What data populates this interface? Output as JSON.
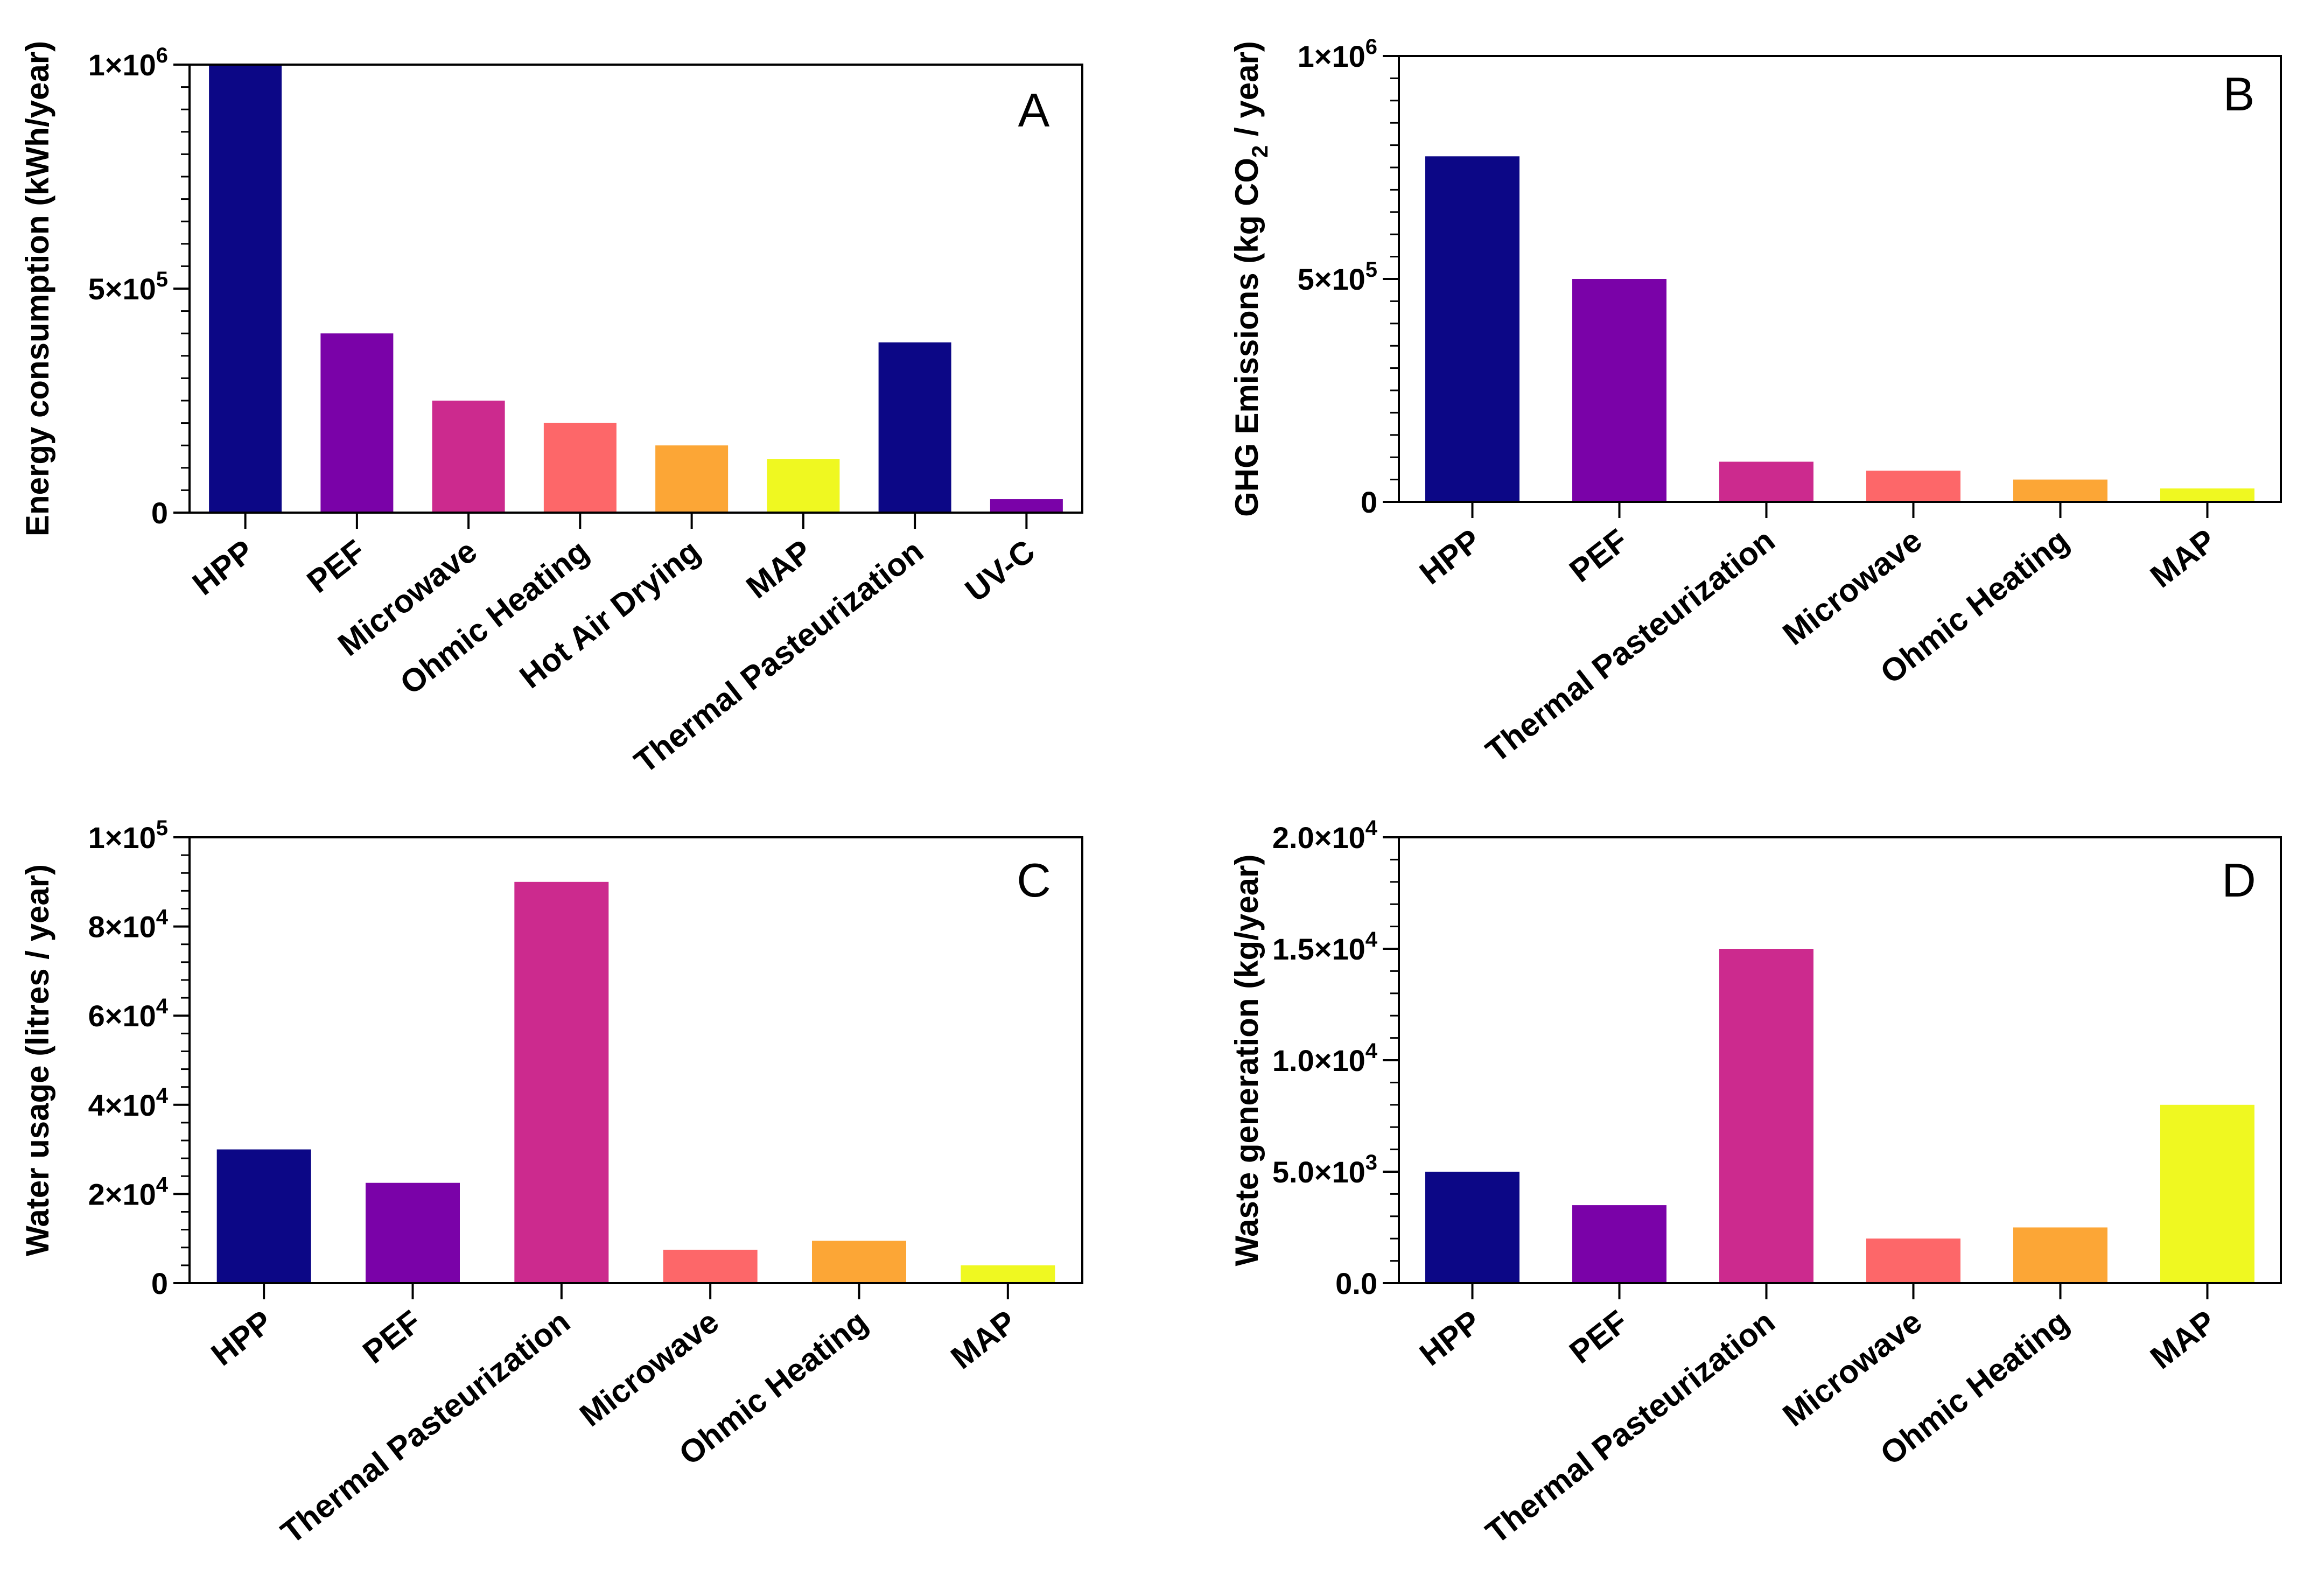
{
  "colors": {
    "palette": [
      "#0c0786",
      "#7a02a8",
      "#cc2a8e",
      "#fd6769",
      "#fca636",
      "#eff821"
    ],
    "axis": "#000000",
    "background": "#ffffff"
  },
  "chart_data": [
    {
      "panel": "A",
      "type": "bar",
      "ylabel": "Energy consumption (kWh/year)",
      "ylim": [
        0,
        1000000
      ],
      "y_ticks": [
        {
          "value": 0,
          "mantissa": "0",
          "exponent": ""
        },
        {
          "value": 500000,
          "mantissa": "5×10",
          "exponent": "5"
        },
        {
          "value": 1000000,
          "mantissa": "1×10",
          "exponent": "6"
        }
      ],
      "minor_ticks_per_major": 10,
      "categories": [
        "HPP",
        "PEF",
        "Microwave",
        "Ohmic Heating",
        "Hot Air Drying",
        "MAP",
        "Thermal Pasteurization",
        "UV-C"
      ],
      "values": [
        1000000,
        400000,
        250000,
        200000,
        150000,
        120000,
        380000,
        30000
      ],
      "bar_colors": [
        "#0c0786",
        "#7a02a8",
        "#cc2a8e",
        "#fd6769",
        "#fca636",
        "#eff821",
        "#0c0786",
        "#7a02a8"
      ],
      "legend": "none"
    },
    {
      "panel": "B",
      "type": "bar",
      "ylabel_parts": [
        "GHG Emissions (kg CO",
        "2",
        " / year)"
      ],
      "ylim": [
        0,
        1000000
      ],
      "y_ticks": [
        {
          "value": 0,
          "mantissa": "0",
          "exponent": ""
        },
        {
          "value": 500000,
          "mantissa": "5×10",
          "exponent": "5"
        },
        {
          "value": 1000000,
          "mantissa": "1×10",
          "exponent": "6"
        }
      ],
      "minor_ticks_per_major": 10,
      "categories": [
        "HPP",
        "PEF",
        "Thermal Pasteurization",
        "Microwave",
        "Ohmic Heating",
        "MAP"
      ],
      "values": [
        775000,
        500000,
        90000,
        70000,
        50000,
        30000
      ],
      "bar_colors": [
        "#0c0786",
        "#7a02a8",
        "#cc2a8e",
        "#fd6769",
        "#fca636",
        "#eff821"
      ],
      "legend": "none"
    },
    {
      "panel": "C",
      "type": "bar",
      "ylabel": "Water usage (litres / year)",
      "ylim": [
        0,
        100000
      ],
      "y_ticks": [
        {
          "value": 0,
          "mantissa": "0",
          "exponent": ""
        },
        {
          "value": 20000,
          "mantissa": "2×10",
          "exponent": "4"
        },
        {
          "value": 40000,
          "mantissa": "4×10",
          "exponent": "4"
        },
        {
          "value": 60000,
          "mantissa": "6×10",
          "exponent": "4"
        },
        {
          "value": 80000,
          "mantissa": "8×10",
          "exponent": "4"
        },
        {
          "value": 100000,
          "mantissa": "1×10",
          "exponent": "5"
        }
      ],
      "minor_ticks_per_major": 5,
      "categories": [
        "HPP",
        "PEF",
        "Thermal Pasteurization",
        "Microwave",
        "Ohmic Heating",
        "MAP"
      ],
      "values": [
        30000,
        22500,
        90000,
        7500,
        9500,
        4000
      ],
      "bar_colors": [
        "#0c0786",
        "#7a02a8",
        "#cc2a8e",
        "#fd6769",
        "#fca636",
        "#eff821"
      ],
      "legend": "none"
    },
    {
      "panel": "D",
      "type": "bar",
      "ylabel": "Waste generation (kg/year)",
      "ylim": [
        0,
        20000
      ],
      "y_ticks": [
        {
          "value": 0,
          "mantissa": "0.0",
          "exponent": ""
        },
        {
          "value": 5000,
          "mantissa": "5.0×10",
          "exponent": "3"
        },
        {
          "value": 10000,
          "mantissa": "1.0×10",
          "exponent": "4"
        },
        {
          "value": 15000,
          "mantissa": "1.5×10",
          "exponent": "4"
        },
        {
          "value": 20000,
          "mantissa": "2.0×10",
          "exponent": "4"
        }
      ],
      "minor_ticks_per_major": 5,
      "categories": [
        "HPP",
        "PEF",
        "Thermal Pasteurization",
        "Microwave",
        "Ohmic Heating",
        "MAP"
      ],
      "values": [
        5000,
        3500,
        15000,
        2000,
        2500,
        8000
      ],
      "bar_colors": [
        "#0c0786",
        "#7a02a8",
        "#cc2a8e",
        "#fd6769",
        "#fca636",
        "#eff821"
      ],
      "legend": "none"
    }
  ]
}
